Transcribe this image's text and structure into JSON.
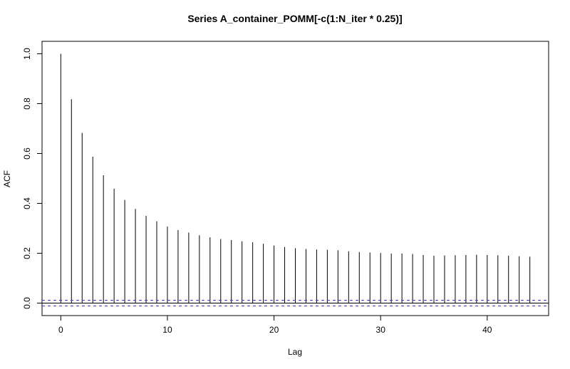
{
  "chart_data": {
    "type": "bar",
    "title": "Series  A_container_POMM[-c(1:N_iter * 0.25)]",
    "xlabel": "Lag",
    "ylabel": "ACF",
    "xlim": [
      -1.76,
      45.76
    ],
    "ylim": [
      -0.05,
      1.05
    ],
    "xticks": [
      0,
      10,
      20,
      30,
      40
    ],
    "yticks": [
      0.0,
      0.2,
      0.4,
      0.6,
      0.8,
      1.0
    ],
    "ytick_labels": [
      "0.0",
      "0.2",
      "0.4",
      "0.6",
      "0.8",
      "1.0"
    ],
    "lags": [
      0,
      1,
      2,
      3,
      4,
      5,
      6,
      7,
      8,
      9,
      10,
      11,
      12,
      13,
      14,
      15,
      16,
      17,
      18,
      19,
      20,
      21,
      22,
      23,
      24,
      25,
      26,
      27,
      28,
      29,
      30,
      31,
      32,
      33,
      34,
      35,
      36,
      37,
      38,
      39,
      40,
      41,
      42,
      43,
      44
    ],
    "values": [
      1.0,
      0.818,
      0.683,
      0.587,
      0.513,
      0.459,
      0.414,
      0.378,
      0.35,
      0.328,
      0.307,
      0.293,
      0.283,
      0.272,
      0.264,
      0.257,
      0.253,
      0.248,
      0.244,
      0.238,
      0.231,
      0.225,
      0.22,
      0.217,
      0.215,
      0.214,
      0.212,
      0.208,
      0.205,
      0.203,
      0.201,
      0.199,
      0.199,
      0.197,
      0.193,
      0.19,
      0.191,
      0.192,
      0.193,
      0.194,
      0.193,
      0.192,
      0.19,
      0.188,
      0.186
    ],
    "confidence_bound": 0.0113,
    "ci_color": "#3b3bc9",
    "grid": false
  }
}
